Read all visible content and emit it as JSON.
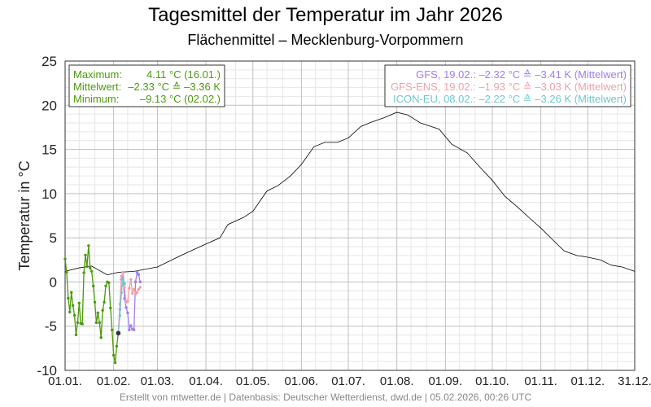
{
  "chart_data": {
    "type": "line",
    "title": "Tagesmittel der Temperatur im Jahr 2026",
    "subtitle": "Flächenmittel – Mecklenburg-Vorpommern",
    "ylabel": "Temperatur in °C",
    "xlabel": "",
    "ylim": [
      -10,
      25
    ],
    "yticks": [
      25,
      20,
      15,
      10,
      5,
      0,
      -5,
      -10
    ],
    "xlim_days": [
      1,
      365
    ],
    "xticks": [
      {
        "label": "01.01.",
        "day": 1
      },
      {
        "label": "01.02.",
        "day": 32
      },
      {
        "label": "01.03.",
        "day": 60
      },
      {
        "label": "01.04.",
        "day": 91
      },
      {
        "label": "01.05.",
        "day": 121
      },
      {
        "label": "01.06.",
        "day": 152
      },
      {
        "label": "01.07.",
        "day": 182
      },
      {
        "label": "01.08.",
        "day": 213
      },
      {
        "label": "01.09.",
        "day": 244
      },
      {
        "label": "01.10.",
        "day": 274
      },
      {
        "label": "01.11.",
        "day": 305
      },
      {
        "label": "01.12.",
        "day": 335
      },
      {
        "label": "31.12.",
        "day": 365
      }
    ],
    "grid": true,
    "stats_box": {
      "position": "top-left",
      "rows": [
        {
          "label": "Maximum:",
          "value": "4.11 °C  (16.01.)"
        },
        {
          "label": "Mittelwert:",
          "value": "–2.33 °C ≙ –3.36 K"
        },
        {
          "label": "Minimum:",
          "value": "–9.13 °C  (02.02.)"
        }
      ]
    },
    "legend": {
      "position": "top-right",
      "entries": [
        {
          "text": "GFS, 19.02.: –2.32 °C ≙ –3.41 K (Mittelwert)",
          "color": "#a17cf2"
        },
        {
          "text": "GFS-ENS, 19.02.: –1.93 °C ≙ –3.03 K (Mittelwert)",
          "color": "#f0a0aa"
        },
        {
          "text": "ICON-EU, 08.02.: –2.22 °C ≙ –3.26 K (Mittelwert)",
          "color": "#6ec8d0"
        }
      ]
    },
    "series": [
      {
        "name": "Klimamittel",
        "color": "#000000",
        "marker": false,
        "days": [
          1,
          10,
          18,
          28,
          35,
          45,
          60,
          75,
          91,
          100,
          105,
          115,
          121,
          130,
          137,
          145,
          152,
          160,
          167,
          175,
          182,
          190,
          197,
          205,
          213,
          220,
          228,
          240,
          248,
          258,
          266,
          274,
          282,
          290,
          298,
          305,
          313,
          320,
          328,
          335,
          343,
          350,
          357,
          365
        ],
        "values": [
          1.2,
          1.6,
          1.8,
          0.8,
          1.1,
          1.2,
          1.7,
          3.0,
          4.3,
          5.0,
          6.5,
          7.3,
          8.0,
          10.3,
          10.9,
          12.0,
          13.3,
          15.3,
          15.8,
          15.8,
          16.3,
          17.6,
          18.1,
          18.6,
          19.2,
          18.9,
          18.0,
          17.3,
          15.6,
          14.6,
          13.0,
          11.5,
          9.7,
          8.5,
          7.2,
          6.1,
          4.7,
          3.5,
          3.0,
          2.8,
          2.5,
          1.9,
          1.7,
          1.2
        ]
      },
      {
        "name": "Messung 2026",
        "color": "#4a9a0a",
        "marker": true,
        "start_day": 1,
        "values": [
          2.59,
          1.11,
          -1.83,
          -3.4,
          -1.19,
          -2.66,
          -3.77,
          -5.98,
          -4.6,
          -2.39,
          -4.69,
          -4.75,
          1.05,
          3.05,
          1.76,
          4.11,
          1.58,
          1.21,
          -0.45,
          -2.29,
          -4.6,
          -3.49,
          -4.6,
          -6.29,
          -3.21,
          -2.29,
          -0.45,
          0.01,
          -0.08,
          -2.94,
          -5.42,
          -8.28,
          -9.13,
          -7.27,
          -5.79
        ]
      },
      {
        "name": "GFS",
        "color": "#a17cf2",
        "marker": true,
        "start_day": 35,
        "values": [
          -5.79,
          -3.12,
          0.29,
          0.59,
          -1.87,
          -2.88,
          -3.49,
          -5.42,
          -4.94,
          -5.33,
          -5.42,
          0.01,
          1.11,
          0.84,
          0.01
        ]
      },
      {
        "name": "GFS-ENS",
        "color": "#f0a0aa",
        "marker": true,
        "start_day": 35,
        "values": [
          -5.79,
          -2.5,
          0.65,
          1.1,
          -0.6,
          -2.29,
          -2.2,
          -0.72,
          0.29,
          -1.28,
          -0.82,
          -1.37,
          -1.19,
          -0.82,
          -0.6
        ]
      },
      {
        "name": "ICON-EU",
        "color": "#6ec8d0",
        "marker": true,
        "start_day": 35,
        "values": [
          -5.79,
          -3.8,
          -1.2,
          0.3,
          -0.2
        ]
      }
    ],
    "footer": "Erstellt von mtwetter.de | Datenbasis: Deutscher Wetterdienst, dwd.de | 05.02.2026, 00:26 UTC"
  }
}
